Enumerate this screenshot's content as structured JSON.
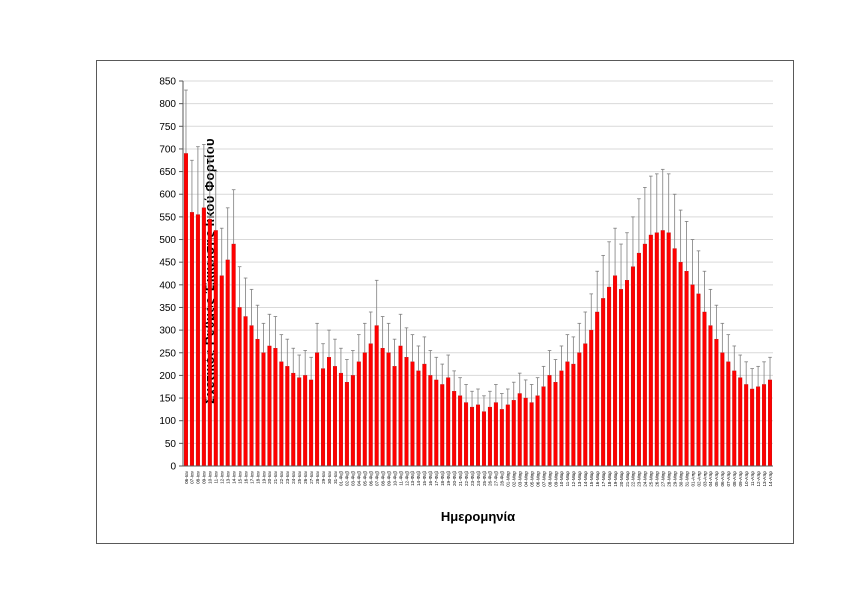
{
  "chart_data": {
    "type": "bar",
    "title": "",
    "xlabel": "Ημερομηνία",
    "ylabel": "Σχετικός Ρυθμός Έκκρισης Ιικού Φορτίου",
    "ylim": [
      0,
      850
    ],
    "ytick_step": 50,
    "grid": true,
    "legend": "none",
    "bar_color": "#FF0000",
    "bar_edge_color": "#C00000",
    "error_bar_color": "#7F7F7F",
    "gridline_color": "#D9D9D9",
    "axis_color": "#595959",
    "categories": [
      "06-Ιαν",
      "07-Ιαν",
      "08-Ιαν",
      "09-Ιαν",
      "10-Ιαν",
      "11-Ιαν",
      "12-Ιαν",
      "13-Ιαν",
      "14-Ιαν",
      "15-Ιαν",
      "16-Ιαν",
      "17-Ιαν",
      "18-Ιαν",
      "19-Ιαν",
      "20-Ιαν",
      "21-Ιαν",
      "22-Ιαν",
      "23-Ιαν",
      "24-Ιαν",
      "25-Ιαν",
      "26-Ιαν",
      "27-Ιαν",
      "28-Ιαν",
      "29-Ιαν",
      "30-Ιαν",
      "31-Ιαν",
      "01-Φεβ",
      "02-Φεβ",
      "03-Φεβ",
      "04-Φεβ",
      "05-Φεβ",
      "06-Φεβ",
      "07-Φεβ",
      "08-Φεβ",
      "09-Φεβ",
      "10-Φεβ",
      "11-Φεβ",
      "12-Φεβ",
      "13-Φεβ",
      "14-Φεβ",
      "15-Φεβ",
      "16-Φεβ",
      "17-Φεβ",
      "18-Φεβ",
      "19-Φεβ",
      "20-Φεβ",
      "21-Φεβ",
      "22-Φεβ",
      "23-Φεβ",
      "24-Φεβ",
      "25-Φεβ",
      "26-Φεβ",
      "27-Φεβ",
      "28-Φεβ",
      "01-Μαρ",
      "02-Μαρ",
      "03-Μαρ",
      "04-Μαρ",
      "05-Μαρ",
      "06-Μαρ",
      "07-Μαρ",
      "08-Μαρ",
      "09-Μαρ",
      "10-Μαρ",
      "11-Μαρ",
      "12-Μαρ",
      "13-Μαρ",
      "14-Μαρ",
      "15-Μαρ",
      "16-Μαρ",
      "17-Μαρ",
      "18-Μαρ",
      "19-Μαρ",
      "20-Μαρ",
      "21-Μαρ",
      "22-Μαρ",
      "23-Μαρ",
      "24-Μαρ",
      "25-Μαρ",
      "26-Μαρ",
      "27-Μαρ",
      "28-Μαρ",
      "29-Μαρ",
      "30-Μαρ",
      "31-Μαρ",
      "01-Απρ",
      "02-Απρ",
      "03-Απρ",
      "04-Απρ",
      "05-Απρ",
      "06-Απρ",
      "07-Απρ",
      "08-Απρ",
      "09-Απρ",
      "10-Απρ",
      "11-Απρ",
      "12-Απρ",
      "13-Απρ",
      "14-Απρ"
    ],
    "values": [
      690,
      560,
      555,
      570,
      545,
      520,
      420,
      455,
      490,
      350,
      330,
      310,
      280,
      250,
      265,
      260,
      230,
      220,
      205,
      195,
      200,
      190,
      250,
      215,
      240,
      220,
      205,
      185,
      200,
      230,
      250,
      270,
      310,
      260,
      250,
      220,
      265,
      240,
      230,
      210,
      225,
      200,
      190,
      180,
      195,
      165,
      155,
      140,
      130,
      135,
      120,
      130,
      140,
      125,
      135,
      145,
      160,
      150,
      140,
      155,
      175,
      200,
      185,
      210,
      230,
      225,
      250,
      270,
      300,
      340,
      370,
      395,
      420,
      390,
      410,
      440,
      470,
      490,
      510,
      515,
      520,
      515,
      480,
      450,
      430,
      400,
      380,
      340,
      310,
      280,
      250,
      230,
      210,
      195,
      180,
      170,
      175,
      180,
      190
    ],
    "errors_upper": [
      140,
      115,
      150,
      140,
      135,
      130,
      105,
      115,
      120,
      90,
      85,
      80,
      75,
      65,
      70,
      70,
      60,
      60,
      55,
      50,
      55,
      50,
      65,
      55,
      60,
      60,
      55,
      50,
      55,
      60,
      65,
      70,
      100,
      70,
      65,
      60,
      70,
      65,
      60,
      55,
      60,
      55,
      50,
      45,
      50,
      45,
      40,
      40,
      35,
      35,
      35,
      35,
      40,
      35,
      35,
      40,
      45,
      40,
      40,
      40,
      45,
      55,
      50,
      55,
      60,
      60,
      65,
      70,
      80,
      90,
      95,
      100,
      105,
      100,
      105,
      110,
      120,
      125,
      130,
      130,
      135,
      130,
      120,
      115,
      110,
      100,
      95,
      90,
      80,
      75,
      65,
      60,
      55,
      50,
      50,
      45,
      45,
      50,
      50
    ]
  }
}
